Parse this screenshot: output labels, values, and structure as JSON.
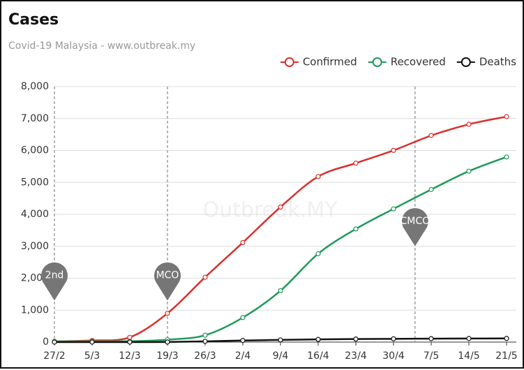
{
  "chart_data": {
    "type": "line",
    "title": "Cases",
    "subtitle": "Covid-19 Malaysia - www.outbreak.my",
    "watermark": "Outbreak.MY",
    "x": [
      "27/2",
      "5/3",
      "12/3",
      "19/3",
      "26/3",
      "2/4",
      "9/4",
      "16/4",
      "23/4",
      "30/4",
      "7/5",
      "14/5",
      "21/5"
    ],
    "series": [
      {
        "name": "Confirmed",
        "color": "#d9302c",
        "values": [
          22,
          50,
          149,
          900,
          2031,
          3116,
          4228,
          5182,
          5603,
          6002,
          6467,
          6819,
          7059
        ]
      },
      {
        "name": "Recovered",
        "color": "#1e9a5a",
        "values": [
          18,
          22,
          26,
          75,
          215,
          767,
          1608,
          2766,
          3542,
          4171,
          4776,
          5351,
          5796
        ]
      },
      {
        "name": "Deaths",
        "color": "#111111",
        "values": [
          0,
          0,
          0,
          2,
          23,
          50,
          67,
          84,
          95,
          102,
          107,
          112,
          114
        ]
      }
    ],
    "ylim": [
      0,
      8000
    ],
    "yticks": [
      0,
      {
        "value": 1000,
        "label": "1,000"
      },
      {
        "value": 2000,
        "label": "2,000"
      },
      {
        "value": 3000,
        "label": "3,000"
      },
      {
        "value": 4000,
        "label": "4,000"
      },
      {
        "value": 5000,
        "label": "5,000"
      },
      {
        "value": 6000,
        "label": "6,000"
      },
      {
        "value": 7000,
        "label": "7,000"
      },
      {
        "value": 8000,
        "label": "8,000"
      }
    ],
    "grid": true,
    "legend": "top-right",
    "annotations": [
      {
        "label": "2nd",
        "x": "27/2",
        "y": 1300
      },
      {
        "label": "MCO",
        "x": "19/3",
        "y": 1300
      },
      {
        "label": "CMCO",
        "x": "4/5",
        "y": 3000
      }
    ]
  }
}
